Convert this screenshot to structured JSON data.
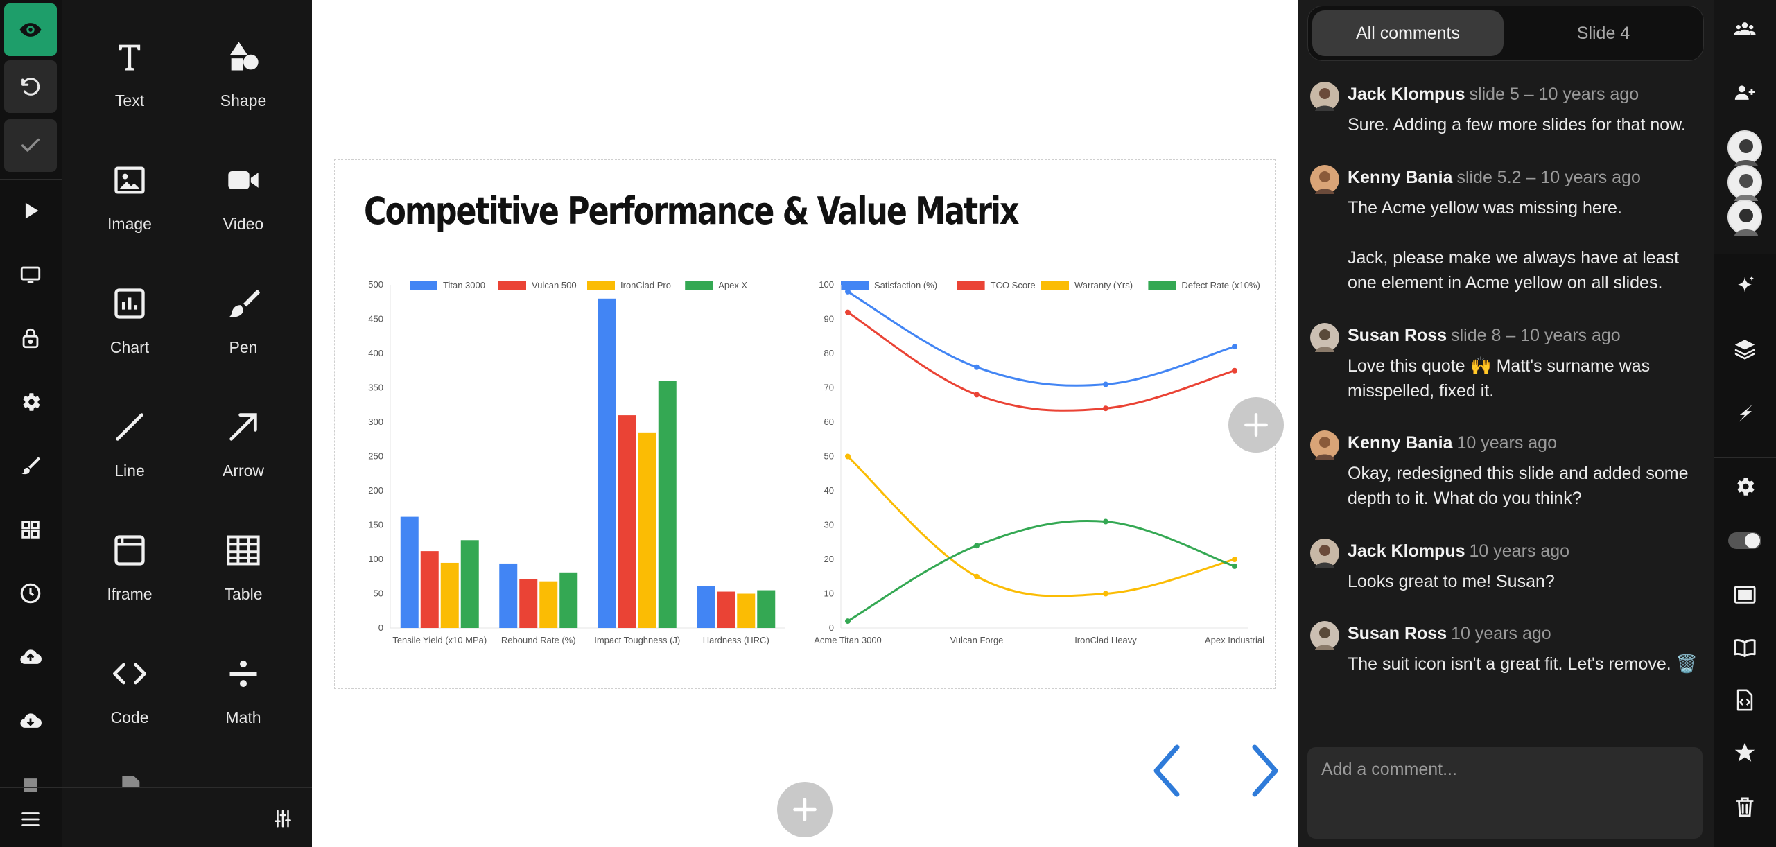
{
  "left_rail": {
    "items": [
      {
        "name": "preview-button",
        "icon": "eye-icon"
      },
      {
        "name": "undo-button",
        "icon": "undo-icon"
      },
      {
        "name": "done-button",
        "icon": "check-icon"
      },
      {
        "name": "play-button",
        "icon": "play-icon"
      },
      {
        "name": "present-button",
        "icon": "monitor-icon"
      },
      {
        "name": "lock-button",
        "icon": "lock-icon"
      },
      {
        "name": "settings-button",
        "icon": "gear-icon"
      },
      {
        "name": "theme-button",
        "icon": "brush-icon"
      },
      {
        "name": "layouts-button",
        "icon": "grid-icon"
      },
      {
        "name": "history-button",
        "icon": "clock-icon"
      },
      {
        "name": "upload-button",
        "icon": "cloud-upload-icon"
      },
      {
        "name": "download-button",
        "icon": "cloud-download-icon"
      }
    ],
    "accent_color": "#1e9e6a"
  },
  "tools": [
    {
      "label": "Text",
      "icon": "text-icon"
    },
    {
      "label": "Shape",
      "icon": "shape-icon"
    },
    {
      "label": "Image",
      "icon": "image-icon"
    },
    {
      "label": "Video",
      "icon": "video-icon"
    },
    {
      "label": "Chart",
      "icon": "chart-icon"
    },
    {
      "label": "Pen",
      "icon": "pen-icon"
    },
    {
      "label": "Line",
      "icon": "line-icon"
    },
    {
      "label": "Arrow",
      "icon": "arrow-icon"
    },
    {
      "label": "Iframe",
      "icon": "iframe-icon"
    },
    {
      "label": "Table",
      "icon": "table-icon"
    },
    {
      "label": "Code",
      "icon": "code-icon"
    },
    {
      "label": "Math",
      "icon": "math-icon"
    }
  ],
  "slide": {
    "title": "Competitive Performance & Value Matrix"
  },
  "chart_data": [
    {
      "type": "bar",
      "categories": [
        "Tensile Yield (x10 MPa)",
        "Rebound Rate (%)",
        "Impact Toughness (J)",
        "Hardness (HRC)"
      ],
      "series": [
        {
          "name": "Titan 3000",
          "color": "#4285f4",
          "values": [
            162,
            94,
            480,
            61
          ]
        },
        {
          "name": "Vulcan 500",
          "color": "#ea4335",
          "values": [
            112,
            71,
            310,
            53
          ]
        },
        {
          "name": "IronClad Pro",
          "color": "#fbbc04",
          "values": [
            95,
            68,
            285,
            50
          ]
        },
        {
          "name": "Apex X",
          "color": "#34a853",
          "values": [
            128,
            81,
            360,
            55
          ]
        }
      ],
      "yticks": [
        "0",
        "50",
        "100",
        "150",
        "200",
        "250",
        "300",
        "350",
        "400",
        "450",
        "500"
      ],
      "ylim": [
        0,
        500
      ],
      "legend": "top",
      "grid": false
    },
    {
      "type": "line",
      "categories": [
        "Acme Titan 3000",
        "Vulcan Forge",
        "IronClad Heavy",
        "Apex Industrial"
      ],
      "series": [
        {
          "name": "Satisfaction (%)",
          "color": "#4285f4",
          "values": [
            98,
            76,
            71,
            82
          ]
        },
        {
          "name": "TCO Score",
          "color": "#ea4335",
          "values": [
            92,
            68,
            64,
            75
          ]
        },
        {
          "name": "Warranty (Yrs)",
          "color": "#fbbc04",
          "values": [
            50,
            15,
            10,
            20
          ]
        },
        {
          "name": "Defect Rate (x10%)",
          "color": "#34a853",
          "values": [
            2,
            24,
            31,
            18
          ]
        }
      ],
      "yticks": [
        "0",
        "10",
        "20",
        "30",
        "40",
        "50",
        "60",
        "70",
        "80",
        "90",
        "100"
      ],
      "ylim": [
        0,
        100
      ],
      "legend": "top",
      "grid": false,
      "smooth": true
    }
  ],
  "comments": {
    "tabs": [
      {
        "label": "All comments",
        "active": true
      },
      {
        "label": "Slide 4",
        "active": false
      }
    ],
    "items": [
      {
        "author": "Jack Klompus",
        "meta": "slide 5  – 10 years ago",
        "text": "Sure. Adding a few more slides for that now.",
        "avatar_bg": "#c8b8a6"
      },
      {
        "author": "Kenny Bania",
        "meta": "slide 5.2  – 10 years ago",
        "text": "The Acme yellow was missing here.\n\nJack, please make we always have at least one element in Acme yellow on all slides.",
        "avatar_bg": "#d9a477"
      },
      {
        "author": "Susan Ross",
        "meta": "slide 8  – 10 years ago",
        "text": "Love this quote 🙌  Matt's surname was misspelled, fixed it.",
        "avatar_bg": "#cbbfb2"
      },
      {
        "author": "Kenny Bania",
        "meta": "10 years ago",
        "text": "Okay, redesigned this slide and added some depth to it. What do you think?",
        "avatar_bg": "#d9a477"
      },
      {
        "author": "Jack Klompus",
        "meta": "10 years ago",
        "text": "Looks great to me! Susan?",
        "avatar_bg": "#c8b8a6"
      },
      {
        "author": "Susan Ross",
        "meta": "10 years ago",
        "text": "The suit icon isn't a great fit. Let's remove. 🗑️",
        "avatar_bg": "#cbbfb2"
      }
    ],
    "input_placeholder": "Add a comment..."
  },
  "right_rail": {
    "items": [
      {
        "name": "team-button",
        "icon": "users-icon"
      },
      {
        "name": "invite-button",
        "icon": "add-user-icon"
      },
      {
        "name": "ai-button",
        "icon": "sparkle-icon"
      },
      {
        "name": "layers-button",
        "icon": "layers-icon"
      },
      {
        "name": "animate-button",
        "icon": "lightning-icon"
      },
      {
        "name": "slide-settings-button",
        "icon": "gear-icon"
      },
      {
        "name": "toggle-switch",
        "icon": "toggle-icon"
      },
      {
        "name": "screen-button",
        "icon": "screen-icon"
      },
      {
        "name": "notes-button",
        "icon": "book-icon"
      },
      {
        "name": "embed-button",
        "icon": "file-code-icon"
      },
      {
        "name": "favorite-button",
        "icon": "star-icon"
      },
      {
        "name": "delete-button",
        "icon": "trash-icon"
      }
    ]
  },
  "nav": {
    "arrow_color": "#2f7bd9"
  }
}
